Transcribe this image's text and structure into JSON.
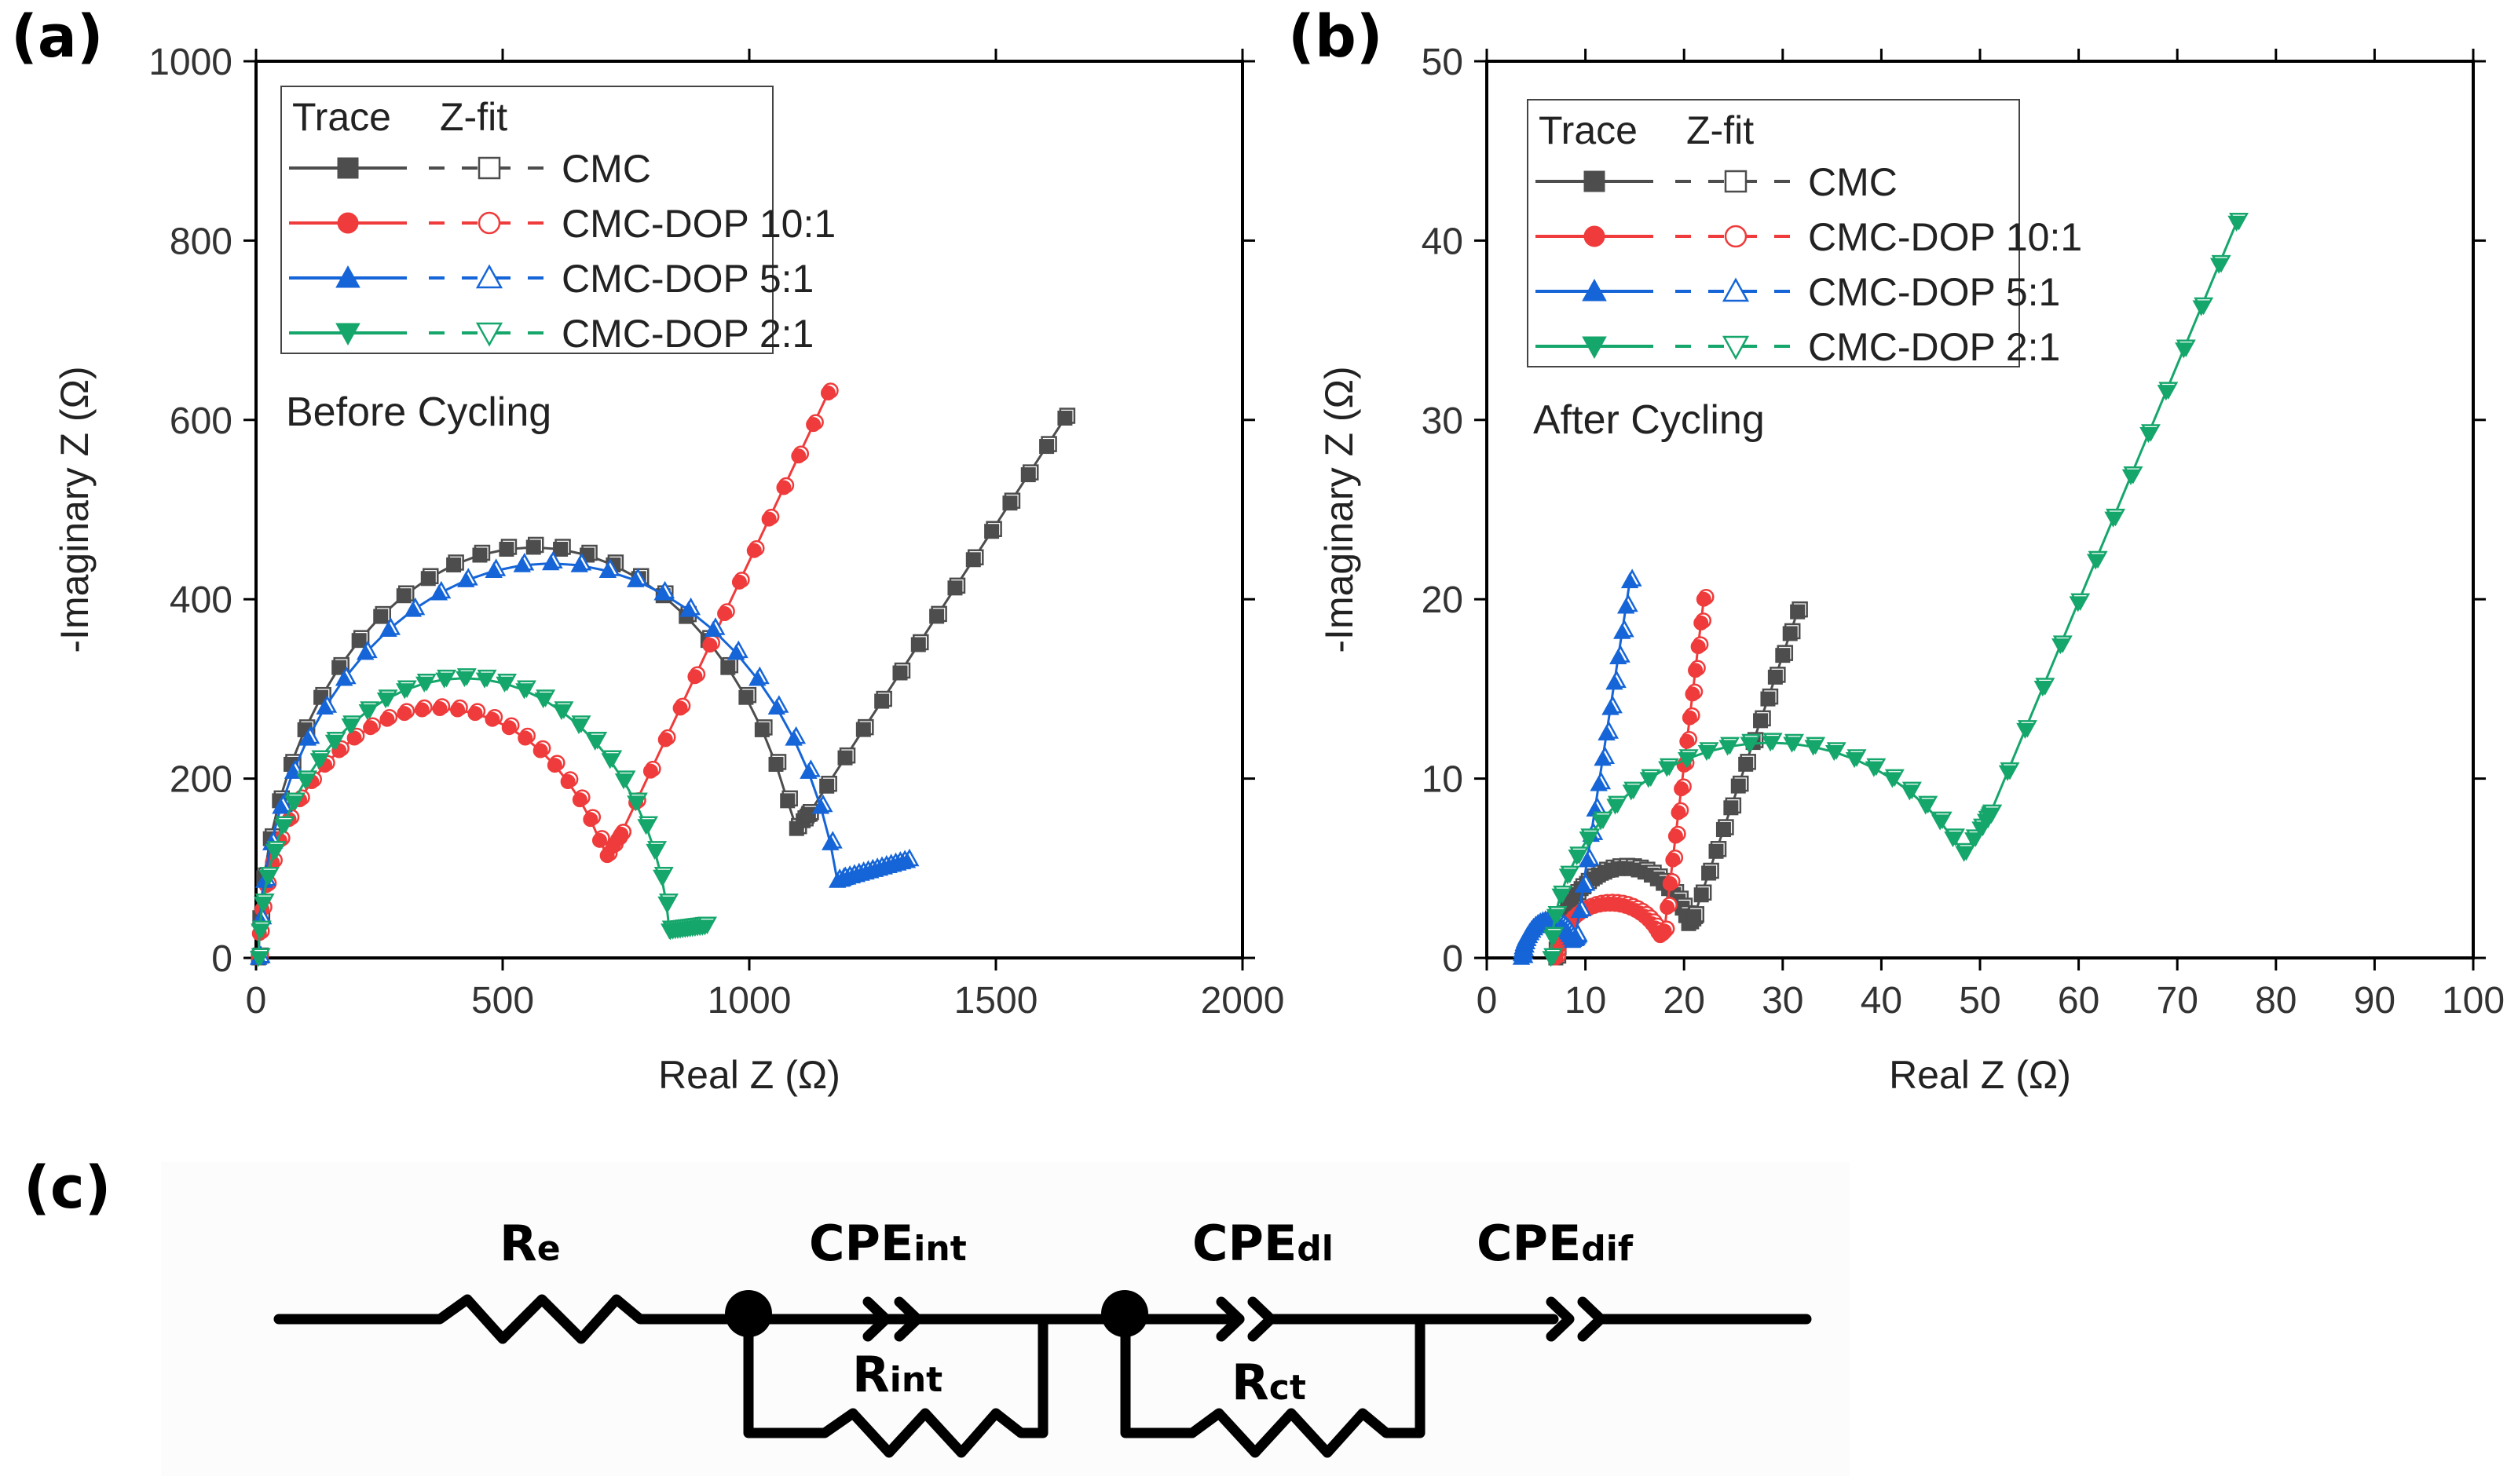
{
  "figure": {
    "panels": {
      "a": "(a)",
      "b": "(b)",
      "c": "(c)"
    },
    "legend": {
      "trace_header": "Trace",
      "fit_header": "Z-fit"
    },
    "circuit": {
      "Re": {
        "main": "R",
        "sub": "e"
      },
      "CPEint": {
        "main": "CPE",
        "sub": "int"
      },
      "Rint": {
        "main": "R",
        "sub": "int"
      },
      "CPEdl": {
        "main": "CPE",
        "sub": "dl"
      },
      "Rct": {
        "main": "R",
        "sub": "ct"
      },
      "CPEdif": {
        "main": "CPE",
        "sub": "dif"
      }
    }
  },
  "chart_data": [
    {
      "id": "a",
      "type": "scatter",
      "title": "",
      "annotation": "Before Cycling",
      "xlabel": "Real Z (Ω)",
      "ylabel": "-Imaginary Z (Ω)",
      "xlim": [
        0,
        2000
      ],
      "ylim": [
        0,
        1000
      ],
      "xticks": [
        0,
        500,
        1000,
        1500,
        2000
      ],
      "yticks": [
        0,
        200,
        400,
        600,
        800,
        1000
      ],
      "grid": false,
      "legend_position": "top-left",
      "series": [
        {
          "name": "CMC",
          "color": "#4d4d4d",
          "marker": "square",
          "arc": {
            "r0": 5,
            "r1": 1120,
            "peak": 458,
            "tail_end": [
              1640,
              602
            ],
            "min_y": 160
          }
        },
        {
          "name": "CMC-DOP 10:1",
          "color": "#ef3b3b",
          "marker": "circle",
          "arc": {
            "r0": 5,
            "r1": 740,
            "peak": 278,
            "tail_end": [
              1160,
              630
            ],
            "min_y": 138
          }
        },
        {
          "name": "CMC-DOP 5:1",
          "color": "#1565d8",
          "marker": "triangle-up",
          "arc": {
            "r0": 5,
            "r1": 1190,
            "peak": 440,
            "tail_end": [
              1320,
              108
            ],
            "min_y": 88
          }
        },
        {
          "name": "CMC-DOP 2:1",
          "color": "#15a66b",
          "marker": "triangle-down",
          "arc": {
            "r0": 5,
            "r1": 840,
            "peak": 312,
            "tail_end": [
              910,
              35
            ],
            "min_y": 30
          }
        }
      ]
    },
    {
      "id": "b",
      "type": "scatter",
      "title": "",
      "annotation": "After Cycling",
      "xlabel": "Real Z (Ω)",
      "ylabel": "-Imaginary Z (Ω)",
      "xlim": [
        0,
        100
      ],
      "ylim": [
        0,
        50
      ],
      "xticks": [
        0,
        10,
        20,
        30,
        40,
        50,
        60,
        70,
        80,
        90,
        100
      ],
      "yticks": [
        0,
        10,
        20,
        30,
        40,
        50
      ],
      "grid": false,
      "legend_position": "top-left",
      "series": [
        {
          "name": "CMC",
          "color": "#4d4d4d",
          "marker": "square",
          "arc": {
            "r0": 7,
            "r1": 21,
            "peak": 5,
            "tail_end": [
              31.5,
              19.3
            ],
            "min_y": 2.3
          }
        },
        {
          "name": "CMC-DOP 10:1",
          "color": "#ef3b3b",
          "marker": "circle",
          "arc": {
            "r0": 7,
            "r1": 18,
            "peak": 3,
            "tail_end": [
              22,
              20
            ],
            "min_y": 1.5
          }
        },
        {
          "name": "CMC-DOP 5:1",
          "color": "#1565d8",
          "marker": "triangle-up",
          "arc": {
            "r0": 3.5,
            "r1": 9,
            "peak": 2,
            "tail_end": [
              14.5,
              21
            ],
            "min_y": 1.2
          }
        },
        {
          "name": "CMC-DOP 2:1",
          "color": "#15a66b",
          "marker": "triangle-down",
          "arc": {
            "r0": 6.5,
            "r1": 51,
            "peak": 12,
            "tail_end": [
              76,
              41
            ],
            "min_y": 8
          }
        }
      ]
    }
  ]
}
